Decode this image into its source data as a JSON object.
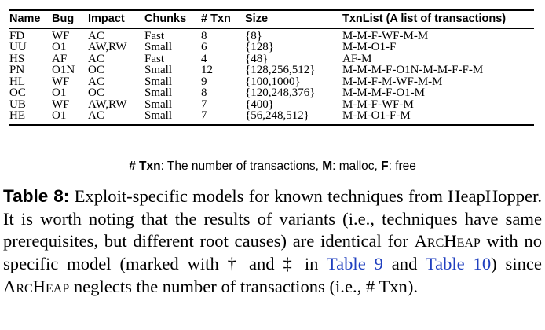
{
  "table": {
    "columns": [
      "Name",
      "Bug",
      "Impact",
      "Chunks",
      "# Txn",
      "Size",
      "TxnList (A list of transactions)"
    ],
    "rows": [
      [
        "FD",
        "WF",
        "AC",
        "Fast",
        "8",
        "{8}",
        "M-M-F-WF-M-M"
      ],
      [
        "UU",
        "O1",
        "AW,RW",
        "Small",
        "6",
        "{128}",
        "M-M-O1-F"
      ],
      [
        "HS",
        "AF",
        "AC",
        "Fast",
        "4",
        "{48}",
        "AF-M"
      ],
      [
        "PN",
        "O1N",
        "OC",
        "Small",
        "12",
        "{128,256,512}",
        "M-M-M-F-O1N-M-M-F-F-M"
      ],
      [
        "HL",
        "WF",
        "AC",
        "Small",
        "9",
        "{100,1000}",
        "M-M-F-M-WF-M-M"
      ],
      [
        "OC",
        "O1",
        "OC",
        "Small",
        "8",
        "{120,248,376}",
        "M-M-M-F-O1-M"
      ],
      [
        "UB",
        "WF",
        "AW,RW",
        "Small",
        "7",
        "{400}",
        "M-M-F-WF-M"
      ],
      [
        "HE",
        "O1",
        "AC",
        "Small",
        "7",
        "{56,248,512}",
        "M-M-O1-F-M"
      ]
    ]
  },
  "note": {
    "txn_key": "# Txn",
    "txn_text": ": The number of transactions, ",
    "m_key": "M",
    "m_text": ": malloc, ",
    "f_key": "F",
    "f_text": ": free"
  },
  "caption": {
    "label": "Table 8:",
    "text1": "  Exploit-specific models for known techniques from HeapHopper. It is worth noting that the results of variants (i.e., techniques have same prerequisites, but different root causes) are identical for ",
    "archeap1": "ArcHeap",
    "text2": " with no specific model (marked with † and ‡ in ",
    "ref1": "Table 9",
    "text3": " and ",
    "ref2": "Table 10",
    "text4": ") since ",
    "archeap2": "ArcHeap",
    "text5": " neglects the number of transactions (i.e., # Txn)."
  }
}
